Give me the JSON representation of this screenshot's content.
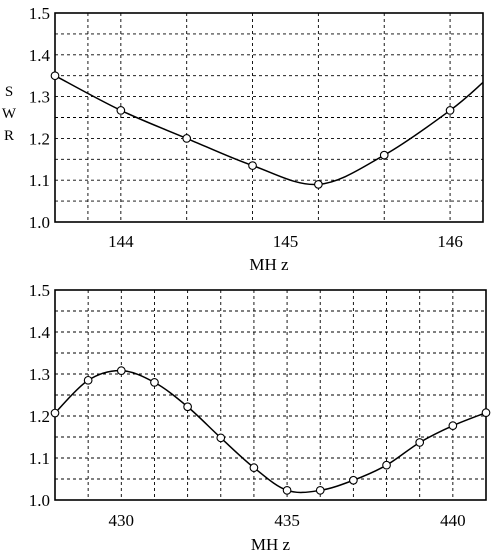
{
  "chart_data": [
    {
      "type": "line",
      "title": "",
      "xlabel": "MH z",
      "ylabel": "SWR",
      "xlim": [
        143.6,
        146.2
      ],
      "ylim": [
        1.0,
        1.5
      ],
      "x_ticks": [
        144,
        145,
        146
      ],
      "y_ticks": [
        1.0,
        1.1,
        1.2,
        1.3,
        1.4,
        1.5
      ],
      "x_tick_labels": [
        "144",
        "145",
        "146"
      ],
      "y_tick_labels": [
        "1.0",
        "1.1",
        "1.2",
        "1.3",
        "1.4",
        "1.5"
      ],
      "grid": true,
      "series": [
        {
          "x": [
            143.6,
            144.0,
            144.4,
            144.8,
            145.2,
            145.6,
            146.0
          ],
          "y": [
            1.35,
            1.267,
            1.2,
            1.135,
            1.09,
            1.16,
            1.267
          ]
        }
      ]
    },
    {
      "type": "line",
      "title": "",
      "xlabel": "MH z",
      "ylabel": "",
      "xlim": [
        428,
        441
      ],
      "ylim": [
        1.0,
        1.5
      ],
      "x_ticks": [
        430,
        435,
        440
      ],
      "y_ticks": [
        1.0,
        1.1,
        1.2,
        1.3,
        1.4,
        1.5
      ],
      "x_tick_labels": [
        "430",
        "435",
        "440"
      ],
      "y_tick_labels": [
        "1.0",
        "1.1",
        "1.2",
        "1.3",
        "1.4",
        "1.5"
      ],
      "grid": true,
      "series": [
        {
          "x": [
            428,
            429,
            430,
            431,
            432,
            433,
            434,
            435,
            436,
            437,
            438,
            439,
            440,
            441
          ],
          "y": [
            1.207,
            1.285,
            1.308,
            1.28,
            1.222,
            1.148,
            1.077,
            1.023,
            1.023,
            1.047,
            1.083,
            1.137,
            1.177,
            1.208
          ]
        }
      ]
    }
  ]
}
